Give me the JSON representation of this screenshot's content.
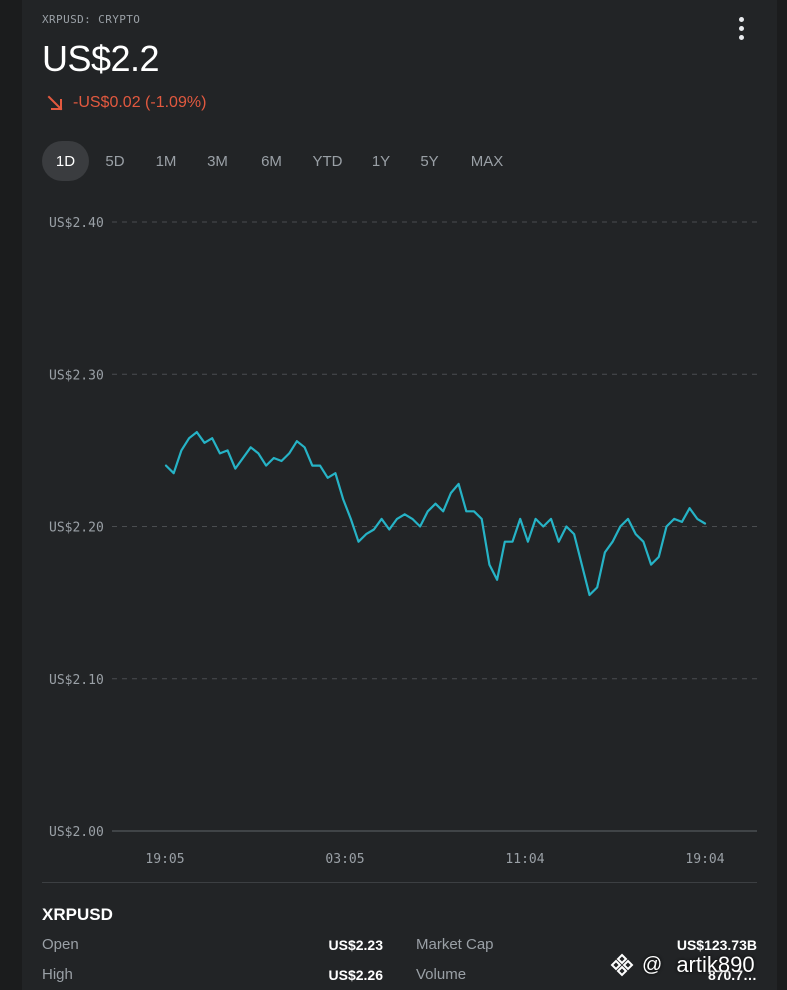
{
  "header": {
    "symbol": "XRPUSD: CRYPTO",
    "price": "US$2.2",
    "change": "-US$0.02 (-1.09%)",
    "menu_icon": "more-vert-icon",
    "change_icon": "arrow-down-right-icon"
  },
  "ranges": {
    "tabs": [
      "1D",
      "5D",
      "1M",
      "3M",
      "6M",
      "YTD",
      "1Y",
      "5Y",
      "MAX"
    ],
    "selected": "1D"
  },
  "colors": {
    "line": "#26b3c6",
    "negative": "#e2593f",
    "background": "#222426"
  },
  "chart_data": {
    "type": "line",
    "title": "",
    "xlabel": "",
    "ylabel": "",
    "ylim": [
      2.0,
      2.4
    ],
    "y_ticks": [
      "US$2.40",
      "US$2.30",
      "US$2.20",
      "US$2.10",
      "US$2.00"
    ],
    "x_ticks": [
      "19:05",
      "03:05",
      "11:04",
      "19:04"
    ],
    "grid": true,
    "series": [
      {
        "values": [
          2.24,
          2.235,
          2.25,
          2.258,
          2.262,
          2.255,
          2.258,
          2.248,
          2.25,
          2.238,
          2.245,
          2.252,
          2.248,
          2.24,
          2.245,
          2.243,
          2.248,
          2.256,
          2.252,
          2.24,
          2.24,
          2.232,
          2.235,
          2.218,
          2.205,
          2.19,
          2.195,
          2.198,
          2.205,
          2.198,
          2.205,
          2.208,
          2.205,
          2.2,
          2.21,
          2.215,
          2.21,
          2.222,
          2.228,
          2.21,
          2.21,
          2.205,
          2.175,
          2.165,
          2.19,
          2.19,
          2.205,
          2.19,
          2.205,
          2.2,
          2.205,
          2.19,
          2.2,
          2.195,
          2.175,
          2.155,
          2.16,
          2.183,
          2.19,
          2.2,
          2.205,
          2.195,
          2.19,
          2.175,
          2.18,
          2.2,
          2.205,
          2.203,
          2.212,
          2.205,
          2.202
        ]
      }
    ]
  },
  "stats": {
    "title": "XRPUSD",
    "rows": [
      {
        "label1": "Open",
        "value1": "US$2.23",
        "label2": "Market Cap",
        "value2": "US$123.73B"
      },
      {
        "label1": "High",
        "value1": "US$2.26",
        "label2": "Volume",
        "value2": "870.7…"
      }
    ]
  },
  "watermark": {
    "icon": "binance-logo-icon",
    "at": "@",
    "text": "artik890"
  }
}
